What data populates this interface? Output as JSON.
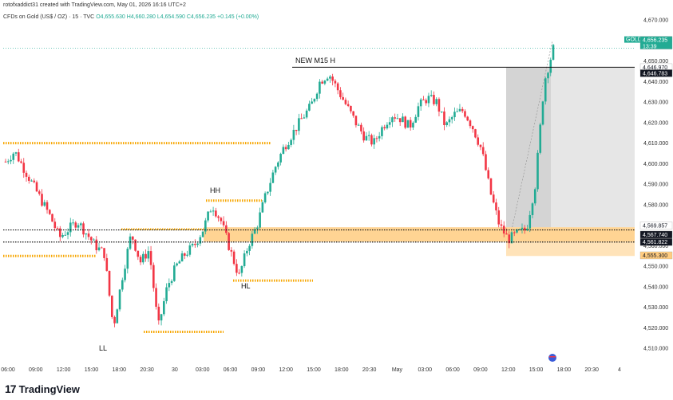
{
  "caption": "rotofxaddict31 created with TradingView.com, May 01, 2026 16:16 UTC+2",
  "symbol": {
    "name": "CFDs on Gold (US$ / OZ) · 15 · TVC",
    "ohlc": "O4,655.630 H4,660.280 L4,654.590 C4,656.235 +0.145 (+0.00%)"
  },
  "footer": {
    "logo_text": "TradingView",
    "logo_mark": "17"
  },
  "colors": {
    "up": "#22ab94",
    "down": "#f23645",
    "zone": "#ffcc80",
    "zone_edge": "#f7a600",
    "grey_box": "#d9d9d9"
  },
  "chart_data": {
    "type": "candlestick",
    "ylim": [
      4505,
      4672
    ],
    "y_ticks": [
      4510,
      4520,
      4530,
      4540,
      4550,
      4560,
      4570,
      4580,
      4590,
      4600,
      4610,
      4620,
      4630,
      4640,
      4650,
      4660,
      4670
    ],
    "x_ticks": [
      "06:00",
      "09:00",
      "12:00",
      "15:00",
      "18:00",
      "20:30",
      "30",
      "03:00",
      "06:00",
      "09:00",
      "12:00",
      "15:00",
      "18:00",
      "20:30",
      "May",
      "03:00",
      "06:00",
      "09:00",
      "12:00",
      "15:00",
      "18:00",
      "20:30",
      "4"
    ],
    "close_path": [
      4601,
      4606,
      4598,
      4590,
      4582,
      4574,
      4564,
      4568,
      4572,
      4566,
      4560,
      4556,
      4520,
      4545,
      4566,
      4552,
      4558,
      4520,
      4540,
      4550,
      4556,
      4560,
      4568,
      4580,
      4572,
      4558,
      4545,
      4560,
      4570,
      4585,
      4598,
      4608,
      4615,
      4622,
      4628,
      4640,
      4644,
      4636,
      4628,
      4620,
      4613,
      4610,
      4618,
      4624,
      4622,
      4618,
      4628,
      4632,
      4630,
      4618,
      4624,
      4626,
      4618,
      4607,
      4586,
      4570,
      4563,
      4566,
      4568,
      4590,
      4640,
      4656
    ],
    "price_labels": [
      {
        "label": "GOLD",
        "value": "4,656.235",
        "sub": "13:39"
      },
      {
        "value": "4,646.970"
      },
      {
        "value": "4,646.783"
      },
      {
        "value": "4,569.857"
      },
      {
        "value": "4,567.740"
      },
      {
        "value": "4,561.822"
      },
      {
        "value": "4,555.300"
      }
    ],
    "annotations": [
      "NEW M15 H",
      "HH",
      "HL",
      "LL"
    ]
  }
}
